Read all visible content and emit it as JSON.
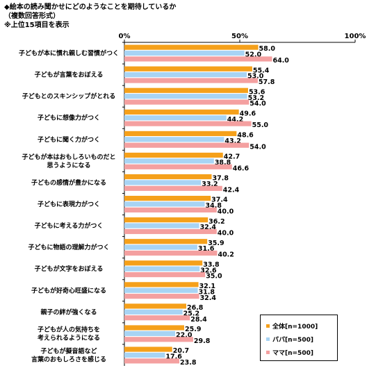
{
  "header": {
    "title": "◆絵本の読み聞かせにどのようなことを期待しているか",
    "subtitle": "（複数回答形式）",
    "note": "※上位15項目を表示"
  },
  "colors": {
    "全体": "#f5a01a",
    "パパ": "#a8d4f4",
    "ママ": "#f4a0a0"
  },
  "chart_data": {
    "type": "bar",
    "orientation": "horizontal",
    "xlim": [
      0,
      100
    ],
    "xticks": [
      "0%",
      "50%",
      "100%"
    ],
    "categories": [
      [
        "子どもが本に慣れ親しむ習慣がつく"
      ],
      [
        "子どもが言葉をおぼえる"
      ],
      [
        "子どもとのスキンシップがとれる"
      ],
      [
        "子どもに想像力がつく"
      ],
      [
        "子どもに聞く力がつく"
      ],
      [
        "子どもが本はおもしろいものだと",
        "思うようになる"
      ],
      [
        "子どもの感情が豊かになる"
      ],
      [
        "子どもに表現力がつく"
      ],
      [
        "子どもに考える力がつく"
      ],
      [
        "子どもに物語の理解力がつく"
      ],
      [
        "子どもが文字をおぼえる"
      ],
      [
        "子どもが好奇心旺盛になる"
      ],
      [
        "親子の絆が強くなる"
      ],
      [
        "子どもが人の気持ちを",
        "考えられるようになる"
      ],
      [
        "子どもが擬音語など",
        "言葉のおもしろさを感じる"
      ]
    ],
    "series": [
      {
        "name": "全体[n=1000]",
        "values": [
          58.0,
          55.4,
          53.6,
          49.6,
          48.6,
          42.7,
          37.8,
          37.4,
          36.2,
          35.9,
          33.8,
          32.1,
          26.8,
          25.9,
          20.7
        ]
      },
      {
        "name": "パパ[n=500]",
        "values": [
          52.0,
          53.0,
          53.2,
          44.2,
          43.2,
          38.8,
          33.2,
          34.8,
          32.4,
          31.6,
          32.6,
          31.8,
          25.2,
          22.0,
          17.6
        ]
      },
      {
        "name": "ママ[n=500]",
        "values": [
          64.0,
          57.8,
          54.0,
          55.0,
          54.0,
          46.6,
          42.4,
          40.0,
          40.0,
          40.2,
          35.0,
          32.4,
          28.4,
          29.8,
          23.8
        ]
      }
    ]
  }
}
